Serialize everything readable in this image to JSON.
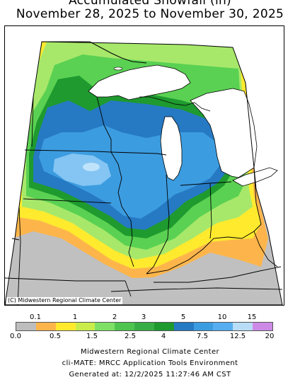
{
  "title": {
    "line1": "Accumulated Snowfall (in)",
    "line2": "November 28, 2025 to November 30, 2025"
  },
  "map": {
    "credit": "(C) Midwestern Regional Climate Center",
    "colors": {
      "none": "#c0c0c0",
      "orange": "#fdb54b",
      "yellow": "#ffea2e",
      "light_green": "#a7e86a",
      "green": "#5ad152",
      "mid_green": "#39b549",
      "dark_green": "#1e9a2f",
      "dark_blue": "#2679c3",
      "blue": "#3c9ce0",
      "light_blue": "#84c5f3",
      "pale_blue": "#bfe3fb",
      "purple": "#cc8ae6",
      "water": "#ffffff",
      "land_outside": "#ffffff"
    }
  },
  "legend": {
    "upper_labels": [
      "0.1",
      "1",
      "2",
      "3",
      "5",
      "10",
      "15"
    ],
    "lower_labels": [
      "0.0",
      "0.5",
      "1.5",
      "2.5",
      "4",
      "7.5",
      "12.5",
      "20"
    ],
    "colors": [
      "#bdbdbd",
      "#fdb54b",
      "#ffea2e",
      "#c9ec4a",
      "#7fe066",
      "#4fc44f",
      "#39ad45",
      "#1e9a2f",
      "#2679c3",
      "#3c9ce0",
      "#56aef0",
      "#b9dcf7",
      "#cc8ae6"
    ]
  },
  "footer": {
    "line1": "Midwestern Regional Climate Center",
    "line2": "cli-MATE: MRCC Application Tools Environment",
    "line3": "Generated at: 12/2/2025 11:27:46 AM CST"
  }
}
